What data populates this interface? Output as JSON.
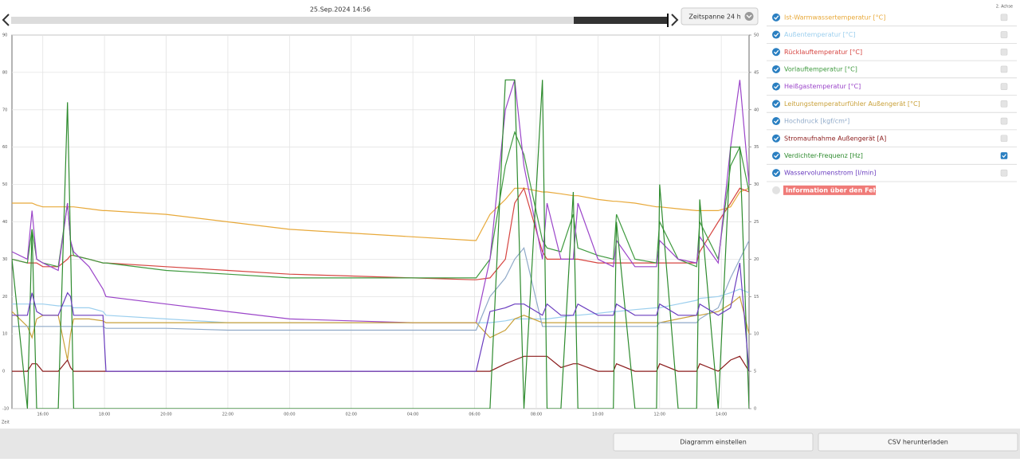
{
  "header": {
    "date": "25.Sep.2024 14:56",
    "timespan": "Zeitspanne 24 h"
  },
  "legend": {
    "axis2_label": "2. Achse",
    "error_info": "Information über den Fehler"
  },
  "buttons": [
    "Diagramm einstellen",
    "CSV herunterladen"
  ],
  "chart_data": {
    "type": "line",
    "x_label": "Zeit",
    "x": [
      15.0,
      15.5,
      15.65,
      15.8,
      16.0,
      16.5,
      16.8,
      16.9,
      17.0,
      17.5,
      17.95,
      18.05,
      20.0,
      22.0,
      24.0,
      26.0,
      28.0,
      29.95,
      30.05,
      30.5,
      31.0,
      31.3,
      31.6,
      32.2,
      32.35,
      32.8,
      33.2,
      33.35,
      34.0,
      34.5,
      34.6,
      35.2,
      35.9,
      36.0,
      36.6,
      37.2,
      37.3,
      37.9,
      38.3,
      38.6,
      38.9
    ],
    "xlim": [
      15.0,
      38.9
    ],
    "xticks": [
      {
        "value": 16,
        "label": "16:00"
      },
      {
        "value": 18,
        "label": "18:00"
      },
      {
        "value": 20,
        "label": "20:00"
      },
      {
        "value": 22,
        "label": "22:00"
      },
      {
        "value": 24,
        "label": "00:00"
      },
      {
        "value": 26,
        "label": "02:00"
      },
      {
        "value": 28,
        "label": "04:00"
      },
      {
        "value": 30,
        "label": "06:00"
      },
      {
        "value": 32,
        "label": "08:00"
      },
      {
        "value": 34,
        "label": "10:00"
      },
      {
        "value": 36,
        "label": "12:00"
      },
      {
        "value": 38,
        "label": "14:00"
      }
    ],
    "ylim": [
      -10,
      90
    ],
    "yticks": [
      -10,
      0,
      10,
      20,
      30,
      40,
      50,
      60,
      70,
      80,
      90
    ],
    "y2lim": [
      0,
      50
    ],
    "y2ticks": [
      0,
      5,
      10,
      15,
      20,
      25,
      30,
      35,
      40,
      45,
      50
    ],
    "grid": true,
    "series": [
      {
        "name": "Ist-Warmwassertemperatur [°C]",
        "color": "#e8a93a",
        "values": [
          45,
          45,
          45,
          44.5,
          44,
          44,
          44,
          44,
          44,
          43.5,
          43,
          43,
          42,
          40,
          38,
          37,
          36,
          35,
          35,
          42,
          46,
          49,
          49,
          48,
          48,
          47.5,
          47,
          47,
          46,
          45.5,
          45.5,
          45,
          44,
          44,
          43.5,
          43,
          43,
          43,
          44,
          48,
          49
        ]
      },
      {
        "name": "Außentemperatur [°C]",
        "color": "#9ccfee",
        "values": [
          18,
          18,
          18,
          18,
          18,
          17.5,
          17.5,
          17.5,
          17,
          17,
          16,
          15,
          14,
          13,
          13,
          13,
          13,
          13,
          13,
          13,
          13.5,
          14,
          14,
          14,
          14,
          14.5,
          15,
          15,
          15.5,
          16,
          16,
          16.5,
          17,
          17,
          18,
          19,
          19.5,
          20,
          21,
          22,
          21
        ]
      },
      {
        "name": "Rücklauftemperatur [°C]",
        "color": "#d64541",
        "values": [
          30,
          29,
          29,
          29,
          28,
          28,
          30,
          31,
          31,
          30,
          29,
          29,
          28,
          27,
          26,
          25.5,
          25,
          24.5,
          24.5,
          25,
          30,
          45,
          49,
          32,
          30,
          30,
          30,
          30,
          29,
          29,
          29,
          29,
          29,
          29,
          29,
          29,
          32,
          40,
          45,
          49,
          48
        ]
      },
      {
        "name": "Vorlauftemperatur [°C]",
        "color": "#3f9a3f",
        "values": [
          30,
          29,
          38,
          30,
          29,
          28,
          45,
          35,
          31,
          30,
          29,
          29,
          27,
          26,
          25,
          25,
          25,
          25,
          25,
          30,
          55,
          64,
          58,
          35,
          33,
          32,
          42,
          33,
          31,
          30,
          42,
          30,
          29,
          40,
          30,
          28,
          40,
          30,
          55,
          60,
          48
        ]
      },
      {
        "name": "Heißgastemperatur [°C]",
        "color": "#9b45c9",
        "values": [
          32,
          30,
          43,
          30,
          29,
          27,
          45,
          35,
          32,
          28,
          22,
          20,
          18,
          16,
          14,
          13.5,
          13,
          13,
          13,
          30,
          70,
          78,
          55,
          30,
          45,
          30,
          30,
          45,
          30,
          28,
          35,
          28,
          28,
          35,
          30,
          29,
          36,
          29,
          60,
          78,
          50
        ]
      },
      {
        "name": "Leitungstemperaturfühler Außengerät [°C]",
        "color": "#c9a13a",
        "values": [
          16,
          12,
          9,
          14,
          15,
          15,
          3,
          10,
          14,
          14,
          13.5,
          13,
          13,
          13,
          13,
          13,
          13,
          13,
          13,
          9,
          11,
          14,
          15,
          13,
          13,
          13,
          13,
          13,
          13,
          13,
          13,
          13,
          13,
          13,
          14,
          15,
          15,
          16,
          18,
          20,
          10
        ]
      },
      {
        "name": "Hochdruck [kgf/cm²]",
        "color": "#8fa9c8",
        "values": [
          12,
          12,
          12,
          12,
          12,
          12,
          12,
          12,
          12,
          12,
          12,
          11.5,
          11.5,
          11,
          11,
          11,
          11,
          11,
          11,
          20,
          25,
          30,
          33,
          12,
          12,
          12,
          12,
          12,
          12,
          12,
          12,
          12,
          12,
          13,
          13,
          13,
          14,
          17,
          25,
          30,
          35
        ]
      },
      {
        "name": "Stromaufnahme Außengerät [A]",
        "color": "#8b1c1c",
        "values": [
          0,
          0,
          2,
          2,
          0,
          0,
          3,
          1,
          0,
          0,
          0,
          0,
          0,
          0,
          0,
          0,
          0,
          0,
          0,
          0,
          2,
          3,
          4,
          4,
          4,
          1,
          2,
          2,
          0,
          0,
          2,
          0,
          0,
          2,
          0,
          0,
          2,
          0,
          3,
          4,
          0
        ]
      },
      {
        "name": "Verdichter-Frequenz [Hz]",
        "color": "#2e8b2e",
        "axis": "y2",
        "values": [
          20,
          0,
          24,
          0,
          0,
          0,
          41,
          22,
          0,
          0,
          0,
          0,
          0,
          0,
          0,
          0,
          0,
          0,
          0,
          0,
          44,
          44,
          0,
          44,
          0,
          0,
          29,
          0,
          0,
          0,
          25,
          0,
          0,
          30,
          0,
          0,
          28,
          0,
          35,
          35,
          0
        ]
      },
      {
        "name": "Wasservolumenstrom [l/min]",
        "color": "#6a3dbf",
        "values": [
          15,
          15,
          21,
          16,
          15,
          15,
          21,
          20,
          15,
          15,
          15,
          0,
          0,
          0,
          0,
          0,
          0,
          0,
          0,
          16,
          17,
          18,
          18,
          15,
          18,
          15,
          15,
          18,
          15,
          15,
          18,
          15,
          15,
          18,
          15,
          15,
          18,
          15,
          17,
          29,
          0
        ]
      }
    ]
  }
}
